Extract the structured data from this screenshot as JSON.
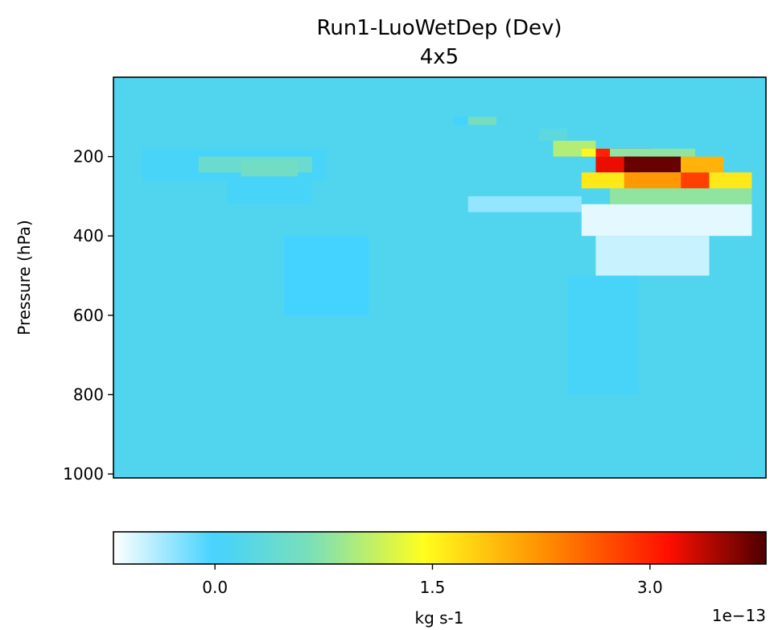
{
  "chart_data": {
    "type": "heatmap",
    "title": "Run1-LuoWetDep (Dev)",
    "subtitle": "4x5",
    "xlabel": "",
    "ylabel": "Pressure (hPa)",
    "ylim": [
      1010,
      0
    ],
    "y_ticks": [
      200,
      400,
      600,
      800,
      1000
    ],
    "y_tick_labels": [
      "200",
      "400",
      "600",
      "800",
      "1000"
    ],
    "x_ticks_shown": false,
    "grid": false,
    "colormap": "WhGrYlRd",
    "colormap_stops": [
      "#ffffff",
      "#44d2ff",
      "#7ee0b4",
      "#fffe1e",
      "#ff8f00",
      "#ff0f00",
      "#4c0000"
    ],
    "colorbar": {
      "orientation": "horizontal",
      "vmin": -0.7,
      "vmax": 3.8,
      "ticks": [
        0.0,
        1.5,
        3.0
      ],
      "tick_labels": [
        "0.0",
        "1.5",
        "3.0"
      ],
      "label": "kg s-1",
      "offset_text": "1e−13"
    },
    "background_value": 0.15,
    "columns": 46,
    "regions": [
      {
        "col": [
          2,
          15
        ],
        "pressure": [
          180,
          260
        ],
        "value": 0.05
      },
      {
        "col": [
          6,
          14
        ],
        "pressure": [
          200,
          240
        ],
        "value": 0.45
      },
      {
        "col": [
          9,
          13
        ],
        "pressure": [
          210,
          250
        ],
        "value": 0.55
      },
      {
        "col": [
          8,
          14
        ],
        "pressure": [
          260,
          320
        ],
        "value": 0.05
      },
      {
        "col": [
          25,
          33
        ],
        "pressure": [
          300,
          340
        ],
        "value": -0.3
      },
      {
        "col": [
          33,
          45
        ],
        "pressure": [
          320,
          400
        ],
        "value": -0.6
      },
      {
        "col": [
          34,
          42
        ],
        "pressure": [
          400,
          500
        ],
        "value": -0.5
      },
      {
        "col": [
          12,
          18
        ],
        "pressure": [
          400,
          600
        ],
        "value": 0.0
      },
      {
        "col": [
          32,
          37
        ],
        "pressure": [
          500,
          800
        ],
        "value": 0.05
      },
      {
        "col": [
          24,
          27
        ],
        "pressure": [
          100,
          120
        ],
        "value": 0.0
      },
      {
        "col": [
          25,
          27
        ],
        "pressure": [
          100,
          120
        ],
        "value": 0.6
      },
      {
        "col": [
          30,
          32
        ],
        "pressure": [
          130,
          160
        ],
        "value": 0.3
      },
      {
        "col": [
          31,
          34
        ],
        "pressure": [
          160,
          200
        ],
        "value": 1.0
      },
      {
        "col": [
          33,
          35
        ],
        "pressure": [
          180,
          200
        ],
        "value": 1.5
      },
      {
        "col": [
          34,
          38
        ],
        "pressure": [
          180,
          200
        ],
        "value": 3.0
      },
      {
        "col": [
          35,
          41
        ],
        "pressure": [
          180,
          200
        ],
        "value": 0.8
      },
      {
        "col": [
          34,
          37
        ],
        "pressure": [
          200,
          240
        ],
        "value": 3.2
      },
      {
        "col": [
          36,
          40
        ],
        "pressure": [
          200,
          240
        ],
        "value": 3.7
      },
      {
        "col": [
          40,
          43
        ],
        "pressure": [
          200,
          240
        ],
        "value": 2.0
      },
      {
        "col": [
          33,
          45
        ],
        "pressure": [
          240,
          280
        ],
        "value": 1.6
      },
      {
        "col": [
          36,
          40
        ],
        "pressure": [
          240,
          280
        ],
        "value": 2.2
      },
      {
        "col": [
          40,
          42
        ],
        "pressure": [
          240,
          280
        ],
        "value": 2.8
      },
      {
        "col": [
          35,
          45
        ],
        "pressure": [
          280,
          320
        ],
        "value": 0.8
      }
    ]
  }
}
